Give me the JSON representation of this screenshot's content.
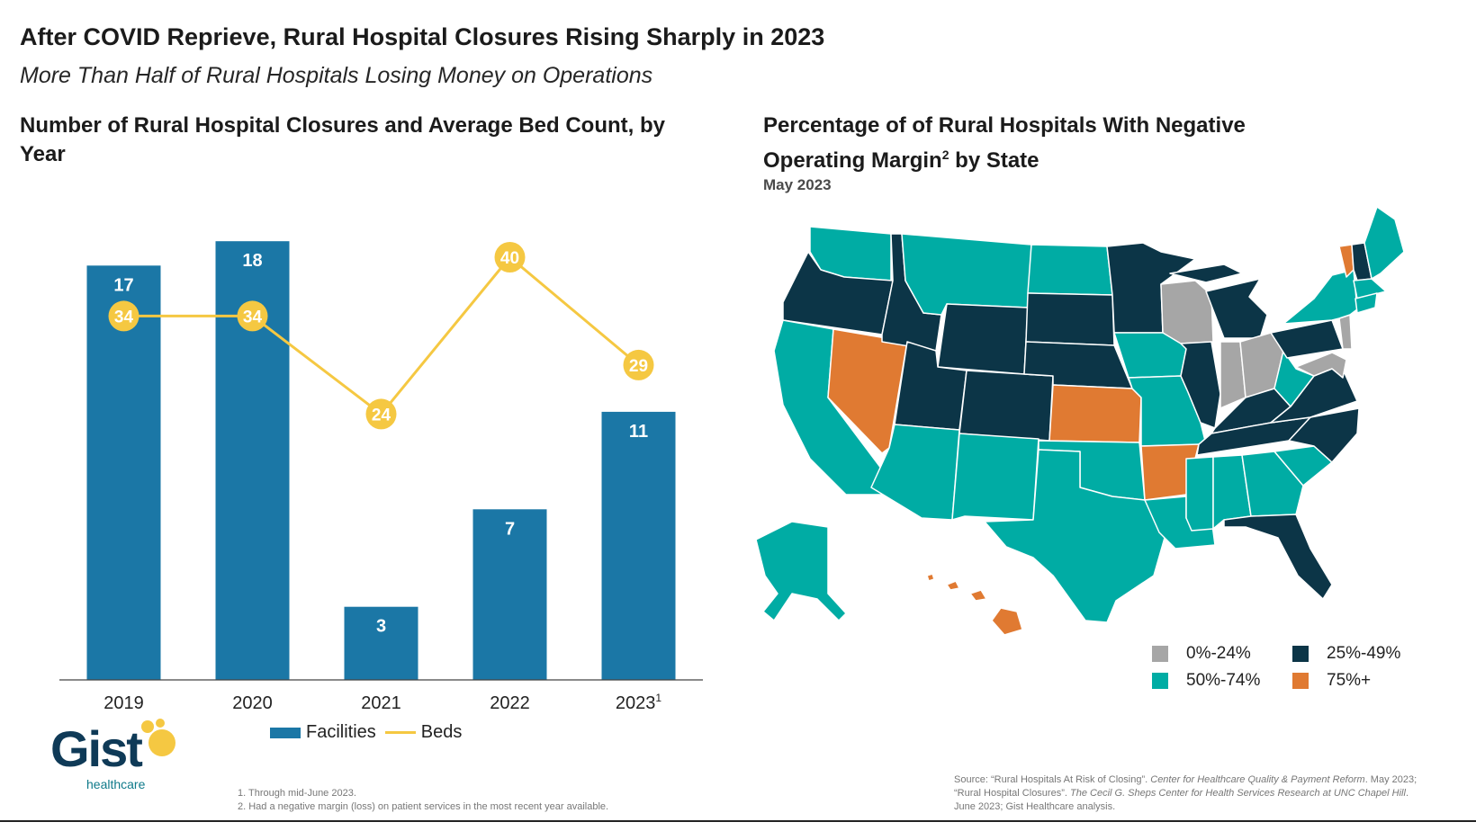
{
  "header": {
    "title": "After COVID Reprieve, Rural Hospital Closures Rising Sharply in 2023",
    "subtitle": "More Than Half of Rural Hospitals Losing Money on Operations"
  },
  "chart_data": {
    "type": "bar",
    "title": "Number of Rural Hospital Closures and Average Bed Count, by Year",
    "categories": [
      "2019",
      "2020",
      "2021",
      "2022",
      "2023"
    ],
    "category_superscripts": [
      "",
      "",
      "",
      "",
      "1"
    ],
    "series": [
      {
        "name": "Facilities",
        "type": "bar",
        "color": "#1b77a6",
        "values": [
          17,
          18,
          3,
          7,
          11
        ]
      },
      {
        "name": "Beds",
        "type": "line",
        "color": "#f5c842",
        "values": [
          34,
          34,
          24,
          40,
          29
        ]
      }
    ],
    "ylim": [
      0,
      18
    ],
    "grid": false,
    "legend": "bottom"
  },
  "map": {
    "title_line1": "Percentage of of Rural Hospitals With Negative",
    "title_line2_pre": "Operating Margin",
    "title_sup": "2",
    "title_line2_post": " by State",
    "date": "May 2023",
    "colors": {
      "low": "#a6a6a6",
      "mid": "#0c3547",
      "teal": "#00aca4",
      "high": "#e07a32"
    },
    "legend": [
      {
        "label": "0%-24%",
        "color": "#a6a6a6"
      },
      {
        "label": "25%-49%",
        "color": "#0c3547"
      },
      {
        "label": "50%-74%",
        "color": "#00aca4"
      },
      {
        "label": "75%+",
        "color": "#e07a32"
      }
    ]
  },
  "logo": {
    "word": "Gist",
    "sub": "healthcare"
  },
  "footnotes": [
    "1. Through mid-June 2023.",
    "2. Had a negative margin (loss) on patient services in the most recent year available."
  ],
  "source": {
    "line1": "Source: “Rural Hospitals At Risk of Closing”.",
    "line1_italic": " Center for Healthcare Quality & Payment",
    "line2_italic": "Reform",
    "line2": ". May 2023; “Rural Hospital Closures”.",
    "line2_italic_b": " The Cecil G. Sheps Center for Health",
    "line3_italic": "Services Research at UNC Chapel Hill",
    "line3": ". June 2023; Gist Healthcare analysis."
  }
}
